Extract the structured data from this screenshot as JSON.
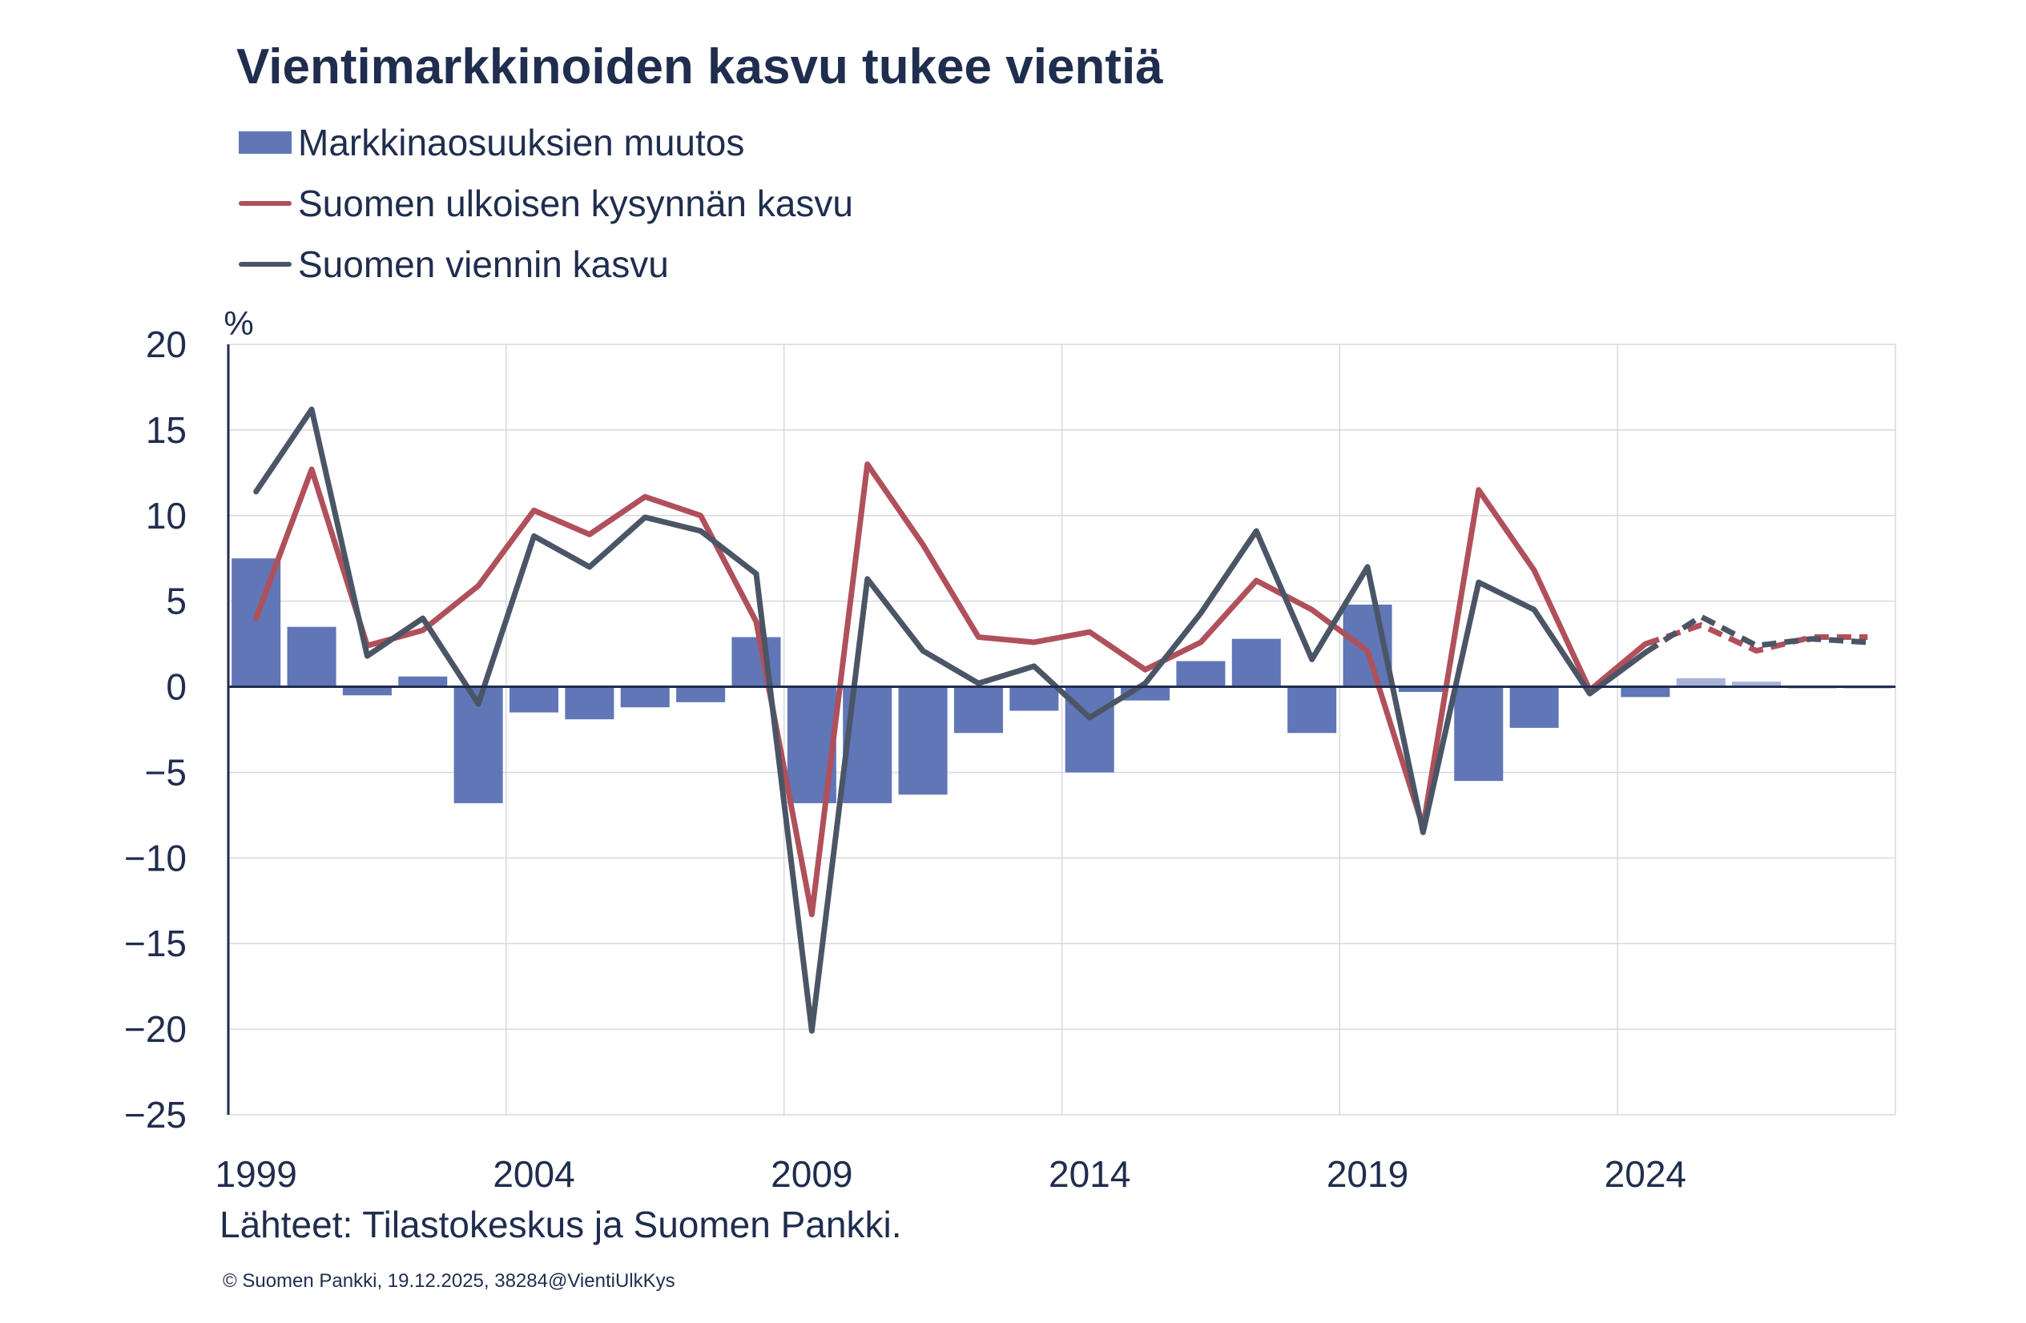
{
  "title": "Vientimarkkinoiden kasvu tukee vientiä",
  "legend": [
    {
      "label": "Markkinaosuuksien muutos",
      "kind": "bar",
      "color": "#6076b6"
    },
    {
      "label": "Suomen ulkoisen kysynnän kasvu",
      "kind": "line",
      "color": "#b0505a"
    },
    {
      "label": "Suomen viennin kasvu",
      "kind": "line",
      "color": "#4a5566"
    }
  ],
  "source": "Lähteet: Tilastokeskus ja Suomen Pankki.",
  "copyright": "© Suomen Pankki, 19.12.2025, 38284@VientiUlkKys",
  "chart_data": {
    "type": "bar+line",
    "title": "Vientimarkkinoiden kasvu tukee vientiä",
    "ylabel": "%",
    "ylim": [
      -25,
      20
    ],
    "yticks": [
      20,
      15,
      10,
      5,
      0,
      -5,
      -10,
      -15,
      -20,
      -25
    ],
    "ytick_labels": [
      "20",
      "15",
      "10",
      "5",
      "0",
      "−5",
      "−10",
      "−15",
      "−20",
      "−25"
    ],
    "xlim": [
      1998.5,
      2028.5
    ],
    "xticks": [
      1999,
      2004,
      2009,
      2014,
      2019,
      2024
    ],
    "xtick_labels": [
      "1999",
      "2004",
      "2009",
      "2014",
      "2019",
      "2024"
    ],
    "x_gridlines": [
      2003.5,
      2008.5,
      2013.5,
      2018.5,
      2023.5
    ],
    "grid": true,
    "forecast_from": 2024,
    "years": [
      1999,
      2000,
      2001,
      2002,
      2003,
      2004,
      2005,
      2006,
      2007,
      2008,
      2009,
      2010,
      2011,
      2012,
      2013,
      2014,
      2015,
      2016,
      2017,
      2018,
      2019,
      2020,
      2021,
      2022,
      2023,
      2024,
      2025,
      2026,
      2027,
      2028
    ],
    "series": [
      {
        "name": "Markkinaosuuksien muutos",
        "type": "bar",
        "color": "#6076b6",
        "forecast_color": "#a7b3d9",
        "values": [
          7.5,
          3.5,
          -0.5,
          0.6,
          -6.8,
          -1.5,
          -1.9,
          -1.2,
          -0.9,
          2.9,
          -6.8,
          -6.8,
          -6.3,
          -2.7,
          -1.4,
          -5.0,
          -0.8,
          1.5,
          2.8,
          -2.7,
          4.8,
          -0.3,
          -5.5,
          -2.4,
          0.0,
          -0.6,
          0.5,
          0.3,
          -0.1,
          -0.1
        ]
      },
      {
        "name": "Suomen ulkoisen kysynnän kasvu",
        "type": "line",
        "color": "#b0505a",
        "values": [
          4.0,
          12.7,
          2.4,
          3.3,
          5.9,
          10.3,
          8.9,
          11.1,
          10.0,
          3.8,
          -13.3,
          13.0,
          8.3,
          2.9,
          2.6,
          3.2,
          1.0,
          2.6,
          6.2,
          4.5,
          2.1,
          -8.2,
          11.5,
          6.8,
          -0.2,
          2.5,
          3.6,
          2.1,
          2.9,
          2.9
        ]
      },
      {
        "name": "Suomen viennin kasvu",
        "type": "line",
        "color": "#4a5566",
        "values": [
          11.4,
          16.2,
          1.8,
          4.0,
          -1.0,
          8.8,
          7.0,
          9.9,
          9.1,
          6.6,
          -20.1,
          6.3,
          2.1,
          0.2,
          1.2,
          -1.8,
          0.2,
          4.3,
          9.1,
          1.6,
          7.0,
          -8.5,
          6.1,
          4.5,
          -0.4,
          2.0,
          4.1,
          2.4,
          2.8,
          2.6
        ]
      }
    ]
  }
}
